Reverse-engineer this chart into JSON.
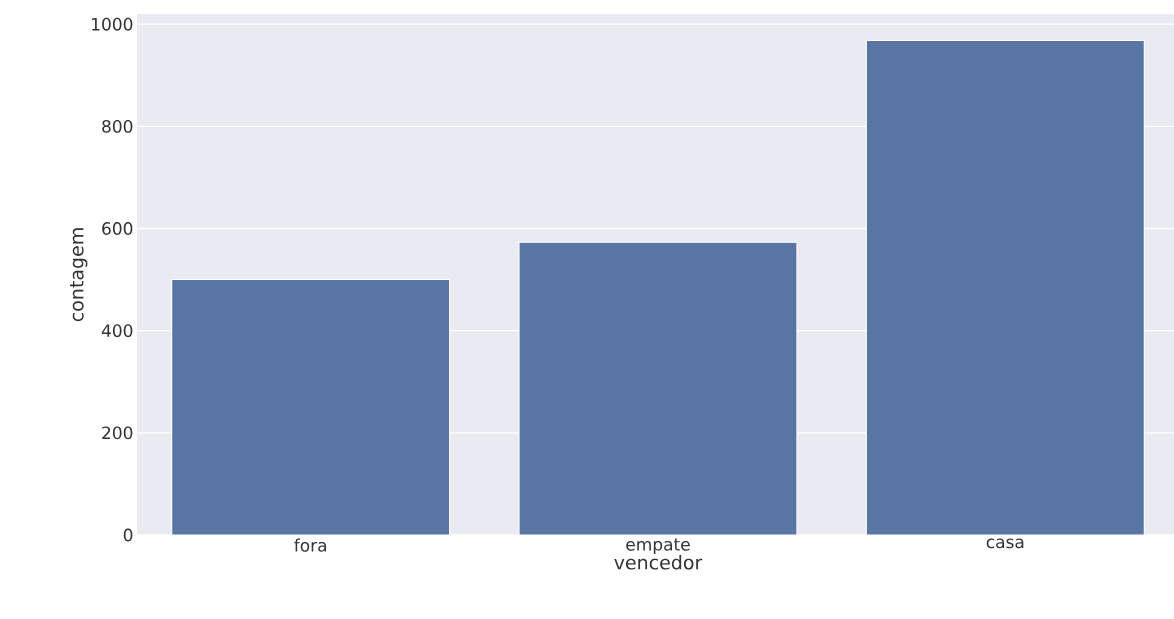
{
  "chart_data": {
    "type": "bar",
    "xlabel": "vencedor",
    "ylabel": "contagem",
    "categories": [
      "fora",
      "empate",
      "casa"
    ],
    "values": [
      500,
      573,
      968
    ],
    "color": "#5975a4",
    "ylim": [
      0,
      1020
    ],
    "yticks": [
      0,
      200,
      400,
      600,
      800,
      1000
    ],
    "grid": "y"
  }
}
